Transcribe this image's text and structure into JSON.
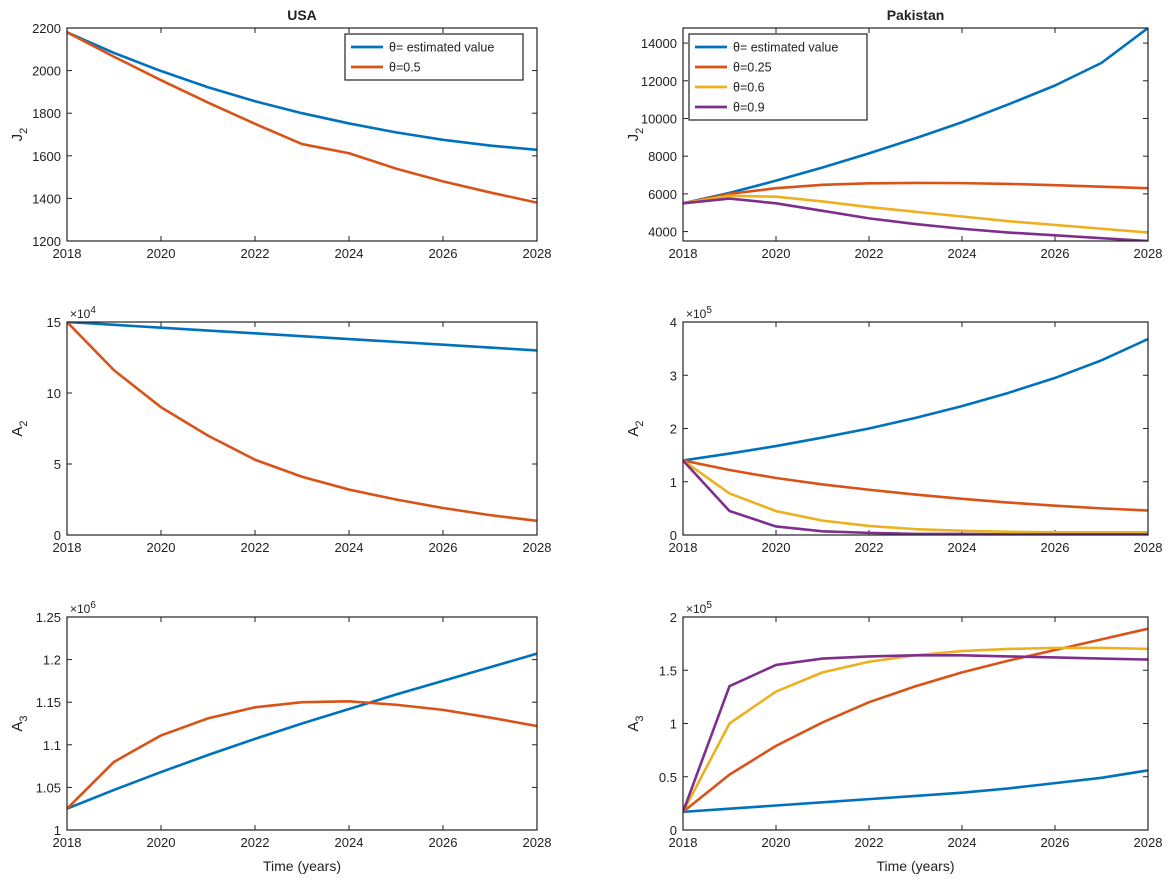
{
  "colors": {
    "blue": "#0072bd",
    "orange": "#d95319",
    "yellow": "#edb120",
    "purple": "#7e2f8e",
    "axis": "#222222"
  },
  "chart_data": [
    {
      "type": "line",
      "title": "USA",
      "xlabel": "",
      "ylabel": "J",
      "ylabel_sub": "2",
      "multiplier": "",
      "xlim": [
        2018,
        2028
      ],
      "ylim": [
        1200,
        2200
      ],
      "xticks": [
        2018,
        2020,
        2022,
        2024,
        2026,
        2028
      ],
      "yticks": [
        1200,
        1400,
        1600,
        1800,
        2000,
        2200
      ],
      "legend": {
        "placement": "top-right"
      },
      "series": [
        {
          "name": "θ= estimated value",
          "color": "#0072bd",
          "x": [
            2018,
            2019,
            2020,
            2021,
            2022,
            2023,
            2024,
            2025,
            2026,
            2027,
            2028
          ],
          "y": [
            2180,
            2083,
            1998,
            1922,
            1856,
            1800,
            1752,
            1710,
            1675,
            1648,
            1628
          ]
        },
        {
          "name": "θ=0.5",
          "color": "#d95319",
          "x": [
            2018,
            2019,
            2020,
            2021,
            2022,
            2023,
            2024,
            2025,
            2026,
            2027,
            2028
          ],
          "y": [
            2180,
            2065,
            1955,
            1850,
            1750,
            1655,
            1612,
            1540,
            1480,
            1428,
            1380
          ]
        }
      ]
    },
    {
      "type": "line",
      "title": "Pakistan",
      "xlabel": "",
      "ylabel": "J",
      "ylabel_sub": "2",
      "multiplier": "",
      "xlim": [
        2018,
        2028
      ],
      "ylim": [
        3500,
        14800
      ],
      "xticks": [
        2018,
        2020,
        2022,
        2024,
        2026,
        2028
      ],
      "yticks": [
        4000,
        6000,
        8000,
        10000,
        12000,
        14000
      ],
      "legend": {
        "placement": "top-left"
      },
      "series": [
        {
          "name": "θ= estimated value",
          "color": "#0072bd",
          "x": [
            2018,
            2019,
            2020,
            2021,
            2022,
            2023,
            2024,
            2025,
            2026,
            2027,
            2028
          ],
          "y": [
            5500,
            6050,
            6700,
            7400,
            8150,
            8950,
            9800,
            10750,
            11750,
            12950,
            14800
          ]
        },
        {
          "name": "θ=0.25",
          "color": "#d95319",
          "x": [
            2018,
            2019,
            2020,
            2021,
            2022,
            2023,
            2024,
            2025,
            2026,
            2027,
            2028
          ],
          "y": [
            5500,
            6000,
            6300,
            6480,
            6560,
            6580,
            6570,
            6530,
            6460,
            6380,
            6300
          ]
        },
        {
          "name": "θ=0.6",
          "color": "#edb120",
          "x": [
            2018,
            2019,
            2020,
            2021,
            2022,
            2023,
            2024,
            2025,
            2026,
            2027,
            2028
          ],
          "y": [
            5500,
            5900,
            5850,
            5600,
            5300,
            5050,
            4800,
            4550,
            4350,
            4150,
            3950
          ]
        },
        {
          "name": "θ=0.9",
          "color": "#7e2f8e",
          "x": [
            2018,
            2019,
            2020,
            2021,
            2022,
            2023,
            2024,
            2025,
            2026,
            2027,
            2028
          ],
          "y": [
            5500,
            5750,
            5500,
            5100,
            4700,
            4400,
            4150,
            3950,
            3800,
            3650,
            3500
          ]
        }
      ]
    },
    {
      "type": "line",
      "title": "",
      "xlabel": "",
      "ylabel": "A",
      "ylabel_sub": "2",
      "multiplier": "×10",
      "multiplier_exp": "4",
      "xlim": [
        2018,
        2028
      ],
      "ylim": [
        0,
        15
      ],
      "xticks": [
        2018,
        2020,
        2022,
        2024,
        2026,
        2028
      ],
      "yticks": [
        0,
        5,
        10,
        15
      ],
      "series": [
        {
          "name": "θ= estimated value",
          "color": "#0072bd",
          "x": [
            2018,
            2019,
            2020,
            2021,
            2022,
            2023,
            2024,
            2025,
            2026,
            2027,
            2028
          ],
          "y": [
            15,
            14.8,
            14.6,
            14.4,
            14.2,
            14.0,
            13.8,
            13.6,
            13.4,
            13.2,
            13.0
          ]
        },
        {
          "name": "θ=0.5",
          "color": "#d95319",
          "x": [
            2018,
            2019,
            2020,
            2021,
            2022,
            2023,
            2024,
            2025,
            2026,
            2027,
            2028
          ],
          "y": [
            15,
            11.6,
            9.0,
            7.0,
            5.3,
            4.1,
            3.2,
            2.5,
            1.9,
            1.4,
            1.0
          ]
        }
      ]
    },
    {
      "type": "line",
      "title": "",
      "xlabel": "",
      "ylabel": "A",
      "ylabel_sub": "2",
      "multiplier": "×10",
      "multiplier_exp": "5",
      "xlim": [
        2018,
        2028
      ],
      "ylim": [
        0,
        4
      ],
      "xticks": [
        2018,
        2020,
        2022,
        2024,
        2026,
        2028
      ],
      "yticks": [
        0,
        1,
        2,
        3,
        4
      ],
      "series": [
        {
          "name": "θ= estimated value",
          "color": "#0072bd",
          "x": [
            2018,
            2019,
            2020,
            2021,
            2022,
            2023,
            2024,
            2025,
            2026,
            2027,
            2028
          ],
          "y": [
            1.4,
            1.53,
            1.67,
            1.83,
            2.0,
            2.2,
            2.42,
            2.67,
            2.95,
            3.28,
            3.68
          ]
        },
        {
          "name": "θ=0.25",
          "color": "#d95319",
          "x": [
            2018,
            2019,
            2020,
            2021,
            2022,
            2023,
            2024,
            2025,
            2026,
            2027,
            2028
          ],
          "y": [
            1.4,
            1.22,
            1.07,
            0.95,
            0.85,
            0.76,
            0.68,
            0.61,
            0.55,
            0.5,
            0.46
          ]
        },
        {
          "name": "θ=0.6",
          "color": "#edb120",
          "x": [
            2018,
            2019,
            2020,
            2021,
            2022,
            2023,
            2024,
            2025,
            2026,
            2027,
            2028
          ],
          "y": [
            1.4,
            0.78,
            0.45,
            0.27,
            0.17,
            0.11,
            0.08,
            0.06,
            0.05,
            0.05,
            0.05
          ]
        },
        {
          "name": "θ=0.9",
          "color": "#7e2f8e",
          "x": [
            2018,
            2019,
            2020,
            2021,
            2022,
            2023,
            2024,
            2025,
            2026,
            2027,
            2028
          ],
          "y": [
            1.4,
            0.45,
            0.16,
            0.07,
            0.04,
            0.02,
            0.02,
            0.01,
            0.01,
            0.01,
            0.01
          ]
        }
      ]
    },
    {
      "type": "line",
      "title": "",
      "xlabel": "Time (years)",
      "ylabel": "A",
      "ylabel_sub": "3",
      "multiplier": "×10",
      "multiplier_exp": "6",
      "xlim": [
        2018,
        2028
      ],
      "ylim": [
        1,
        1.25
      ],
      "xticks": [
        2018,
        2020,
        2022,
        2024,
        2026,
        2028
      ],
      "yticks": [
        1,
        1.05,
        1.1,
        1.15,
        1.2,
        1.25
      ],
      "series": [
        {
          "name": "θ= estimated value",
          "color": "#0072bd",
          "x": [
            2018,
            2019,
            2020,
            2021,
            2022,
            2023,
            2024,
            2025,
            2026,
            2027,
            2028
          ],
          "y": [
            1.025,
            1.047,
            1.068,
            1.088,
            1.107,
            1.125,
            1.142,
            1.159,
            1.175,
            1.191,
            1.207
          ]
        },
        {
          "name": "θ=0.5",
          "color": "#d95319",
          "x": [
            2018,
            2019,
            2020,
            2021,
            2022,
            2023,
            2024,
            2025,
            2026,
            2027,
            2028
          ],
          "y": [
            1.025,
            1.08,
            1.111,
            1.131,
            1.144,
            1.15,
            1.151,
            1.147,
            1.141,
            1.132,
            1.122
          ]
        }
      ]
    },
    {
      "type": "line",
      "title": "",
      "xlabel": "Time (years)",
      "ylabel": "A",
      "ylabel_sub": "3",
      "multiplier": "×10",
      "multiplier_exp": "5",
      "xlim": [
        2018,
        2028
      ],
      "ylim": [
        0,
        2
      ],
      "xticks": [
        2018,
        2020,
        2022,
        2024,
        2026,
        2028
      ],
      "yticks": [
        0,
        0.5,
        1,
        1.5,
        2
      ],
      "series": [
        {
          "name": "θ= estimated value",
          "color": "#0072bd",
          "x": [
            2018,
            2019,
            2020,
            2021,
            2022,
            2023,
            2024,
            2025,
            2026,
            2027,
            2028
          ],
          "y": [
            0.17,
            0.2,
            0.23,
            0.26,
            0.29,
            0.32,
            0.35,
            0.39,
            0.44,
            0.49,
            0.56
          ]
        },
        {
          "name": "θ=0.25",
          "color": "#d95319",
          "x": [
            2018,
            2019,
            2020,
            2021,
            2022,
            2023,
            2024,
            2025,
            2026,
            2027,
            2028
          ],
          "y": [
            0.17,
            0.52,
            0.79,
            1.01,
            1.2,
            1.35,
            1.48,
            1.59,
            1.69,
            1.79,
            1.89
          ]
        },
        {
          "name": "θ=0.6",
          "color": "#edb120",
          "x": [
            2018,
            2019,
            2020,
            2021,
            2022,
            2023,
            2024,
            2025,
            2026,
            2027,
            2028
          ],
          "y": [
            0.17,
            1.0,
            1.3,
            1.48,
            1.58,
            1.64,
            1.68,
            1.7,
            1.71,
            1.71,
            1.7
          ]
        },
        {
          "name": "θ=0.9",
          "color": "#7e2f8e",
          "x": [
            2018,
            2019,
            2020,
            2021,
            2022,
            2023,
            2024,
            2025,
            2026,
            2027,
            2028
          ],
          "y": [
            0.17,
            1.35,
            1.55,
            1.61,
            1.63,
            1.64,
            1.64,
            1.63,
            1.62,
            1.61,
            1.6
          ]
        }
      ]
    }
  ]
}
